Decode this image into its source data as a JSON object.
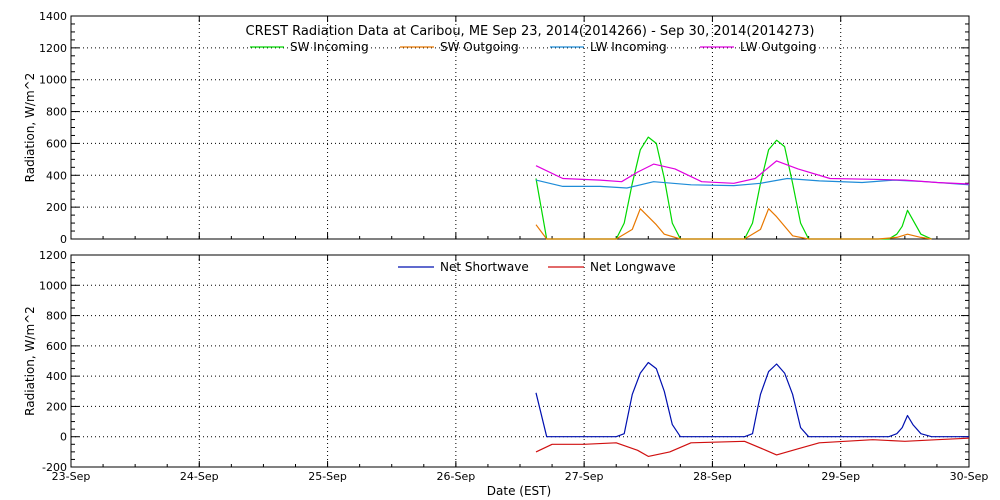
{
  "title": "CREST Radiation Data at Caribou, ME   Sep 23, 2014(2014266) - Sep 30, 2014(2014273)",
  "xlabel": "Date (EST)",
  "colors": {
    "sw_in": "#00d800",
    "sw_out": "#e87800",
    "lw_in": "#1e8cd8",
    "lw_out": "#e000e0",
    "net_sw": "#0010b0",
    "net_lw": "#d01010"
  },
  "chart_data": [
    {
      "type": "line",
      "panel": "top",
      "ylabel": "Radiation, W/m^2",
      "xlim": [
        "2014-09-23",
        "2014-09-30"
      ],
      "xticks": [
        "23-Sep",
        "24-Sep",
        "25-Sep",
        "26-Sep",
        "27-Sep",
        "28-Sep",
        "29-Sep",
        "30-Sep"
      ],
      "ylim": [
        0,
        1400
      ],
      "yticks": [
        0,
        200,
        400,
        600,
        800,
        1000,
        1200,
        1400
      ],
      "grid": true,
      "legend_position": "top-center",
      "series": [
        {
          "name": "SW Incoming",
          "color_key": "sw_in",
          "x": [
            "2014-09-26 15:00",
            "2014-09-26 17:00",
            "2014-09-27 06:00",
            "2014-09-27 07:30",
            "2014-09-27 09:00",
            "2014-09-27 10:30",
            "2014-09-27 12:00",
            "2014-09-27 13:30",
            "2014-09-27 15:00",
            "2014-09-27 16:30",
            "2014-09-27 18:00",
            "2014-09-28 06:00",
            "2014-09-28 07:30",
            "2014-09-28 09:00",
            "2014-09-28 10:30",
            "2014-09-28 12:00",
            "2014-09-28 13:30",
            "2014-09-28 15:00",
            "2014-09-28 16:30",
            "2014-09-28 18:00",
            "2014-09-29 07:00",
            "2014-09-29 09:00",
            "2014-09-29 10:30",
            "2014-09-29 11:30",
            "2014-09-29 12:30",
            "2014-09-29 13:30",
            "2014-09-29 15:00",
            "2014-09-29 17:00"
          ],
          "y": [
            380,
            0,
            0,
            100,
            350,
            560,
            640,
            600,
            380,
            100,
            0,
            0,
            100,
            350,
            560,
            620,
            580,
            350,
            100,
            0,
            0,
            0,
            30,
            80,
            180,
            120,
            30,
            0
          ]
        },
        {
          "name": "SW Outgoing",
          "color_key": "sw_out",
          "x": [
            "2014-09-26 15:00",
            "2014-09-26 17:00",
            "2014-09-27 06:00",
            "2014-09-27 09:00",
            "2014-09-27 10:30",
            "2014-09-27 12:00",
            "2014-09-27 13:30",
            "2014-09-27 15:00",
            "2014-09-27 18:00",
            "2014-09-28 06:00",
            "2014-09-28 09:00",
            "2014-09-28 10:30",
            "2014-09-28 12:00",
            "2014-09-28 13:30",
            "2014-09-28 15:00",
            "2014-09-28 18:00",
            "2014-09-29 07:00",
            "2014-09-29 10:30",
            "2014-09-29 12:30",
            "2014-09-29 15:00",
            "2014-09-29 17:00"
          ],
          "y": [
            90,
            0,
            0,
            60,
            190,
            140,
            90,
            30,
            0,
            0,
            60,
            190,
            140,
            80,
            20,
            0,
            0,
            10,
            30,
            10,
            0
          ]
        },
        {
          "name": "LW Incoming",
          "color_key": "lw_in",
          "x": [
            "2014-09-26 15:00",
            "2014-09-26 20:00",
            "2014-09-27 03:00",
            "2014-09-27 08:00",
            "2014-09-27 13:00",
            "2014-09-27 20:00",
            "2014-09-28 04:00",
            "2014-09-28 09:00",
            "2014-09-28 14:00",
            "2014-09-28 20:00",
            "2014-09-29 04:00",
            "2014-09-29 10:00",
            "2014-09-29 16:00",
            "2014-09-29 22:00",
            "2014-09-30 00:00"
          ],
          "y": [
            370,
            330,
            330,
            320,
            360,
            340,
            335,
            350,
            380,
            365,
            355,
            370,
            360,
            345,
            340
          ]
        },
        {
          "name": "LW Outgoing",
          "color_key": "lw_out",
          "x": [
            "2014-09-26 15:00",
            "2014-09-26 20:00",
            "2014-09-27 03:00",
            "2014-09-27 07:00",
            "2014-09-27 10:00",
            "2014-09-27 13:00",
            "2014-09-27 17:00",
            "2014-09-27 22:00",
            "2014-09-28 04:00",
            "2014-09-28 08:00",
            "2014-09-28 12:00",
            "2014-09-28 16:00",
            "2014-09-28 22:00",
            "2014-09-29 06:00",
            "2014-09-29 12:00",
            "2014-09-29 18:00",
            "2014-09-30 00:00"
          ],
          "y": [
            460,
            380,
            370,
            360,
            420,
            470,
            440,
            360,
            350,
            380,
            490,
            440,
            380,
            375,
            370,
            355,
            345
          ]
        }
      ]
    },
    {
      "type": "line",
      "panel": "bottom",
      "ylabel": "Radiation, W/m^2",
      "xlim": [
        "2014-09-23",
        "2014-09-30"
      ],
      "xticks": [
        "23-Sep",
        "24-Sep",
        "25-Sep",
        "26-Sep",
        "27-Sep",
        "28-Sep",
        "29-Sep",
        "30-Sep"
      ],
      "ylim": [
        -200,
        1200
      ],
      "yticks": [
        -200,
        0,
        200,
        400,
        600,
        800,
        1000,
        1200
      ],
      "grid": true,
      "legend_position": "top-center",
      "series": [
        {
          "name": "Net Shortwave",
          "color_key": "net_sw",
          "x": [
            "2014-09-26 15:00",
            "2014-09-26 17:00",
            "2014-09-27 06:00",
            "2014-09-27 07:30",
            "2014-09-27 09:00",
            "2014-09-27 10:30",
            "2014-09-27 12:00",
            "2014-09-27 13:30",
            "2014-09-27 15:00",
            "2014-09-27 16:30",
            "2014-09-27 18:00",
            "2014-09-28 06:00",
            "2014-09-28 07:30",
            "2014-09-28 09:00",
            "2014-09-28 10:30",
            "2014-09-28 12:00",
            "2014-09-28 13:30",
            "2014-09-28 15:00",
            "2014-09-28 16:30",
            "2014-09-28 18:00",
            "2014-09-29 07:00",
            "2014-09-29 09:00",
            "2014-09-29 10:30",
            "2014-09-29 11:30",
            "2014-09-29 12:30",
            "2014-09-29 13:30",
            "2014-09-29 15:00",
            "2014-09-29 17:00",
            "2014-09-30 00:00"
          ],
          "y": [
            290,
            0,
            0,
            20,
            280,
            420,
            490,
            450,
            300,
            80,
            0,
            0,
            20,
            280,
            430,
            480,
            420,
            280,
            60,
            0,
            0,
            0,
            20,
            60,
            140,
            80,
            20,
            0,
            0
          ]
        },
        {
          "name": "Net Longwave",
          "color_key": "net_lw",
          "x": [
            "2014-09-26 15:00",
            "2014-09-26 18:00",
            "2014-09-27 00:00",
            "2014-09-27 06:00",
            "2014-09-27 10:00",
            "2014-09-27 12:00",
            "2014-09-27 16:00",
            "2014-09-27 20:00",
            "2014-09-28 06:00",
            "2014-09-28 10:00",
            "2014-09-28 12:00",
            "2014-09-28 16:00",
            "2014-09-28 20:00",
            "2014-09-29 06:00",
            "2014-09-29 12:00",
            "2014-09-29 18:00",
            "2014-09-30 00:00"
          ],
          "y": [
            -100,
            -50,
            -50,
            -40,
            -90,
            -130,
            -100,
            -40,
            -30,
            -90,
            -120,
            -80,
            -40,
            -20,
            -30,
            -20,
            -10
          ]
        }
      ]
    }
  ]
}
